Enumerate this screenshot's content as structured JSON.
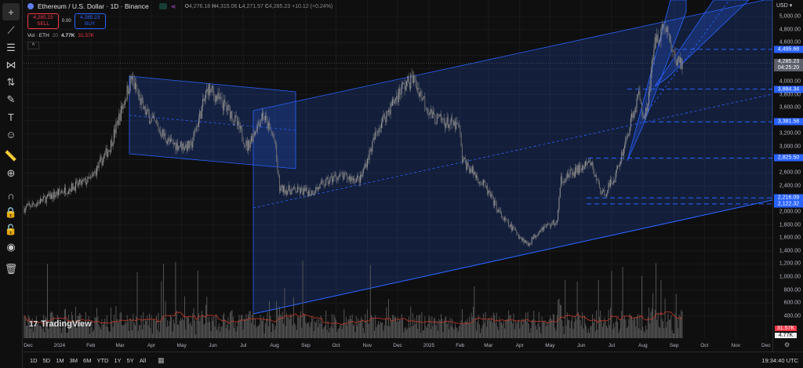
{
  "header": {
    "symbol_icon": "ethereum-icon",
    "title": "Ethereum / U.S. Dollar · 1D · Binance",
    "ohlc": {
      "o_label": "O",
      "o": "4,276.18",
      "h_label": "H",
      "h": "4,315.06",
      "l_label": "L",
      "l": "4,271.57",
      "c_label": "C",
      "c": "4,285.23",
      "change": "+10.12 (+0.24%)"
    },
    "sell_price": "4,285.23",
    "sell_label": "SELL",
    "spread": "0.00",
    "buy_price": "4,285.23",
    "buy_label": "BUY",
    "vol_label": "Vol · ETH",
    "vol_len": "20",
    "vol_value": "4.77K",
    "vol_ma": "31.57K",
    "collapse": "^"
  },
  "toolbar": [
    "crosshair-icon",
    "trendline-icon",
    "fib-icon",
    "pattern-icon",
    "projection-icon",
    "brush-icon",
    "text-icon",
    "emoji-icon",
    "ruler-icon",
    "zoom-in-icon",
    "magnet-icon",
    "lock-drawing-icon",
    "unlock-icon",
    "eye-icon",
    "trash-icon"
  ],
  "axis": {
    "currency": "USD ▾",
    "current_price": "4,285.23",
    "countdown": "04:25:20",
    "vol_ma_badge": "31.57K",
    "vol_badge": "4.77K",
    "time": "19:34:40 UTC"
  },
  "colors": {
    "bg": "#0f0f0f",
    "candle": "#8a8a8a",
    "drawing": "#2962ff",
    "sell": "#f23645",
    "ma": "#c0392b"
  },
  "bottom": {
    "ranges": [
      "1D",
      "5D",
      "1M",
      "3M",
      "6M",
      "YTD",
      "1Y",
      "5Y",
      "All"
    ],
    "brand": "TradingView"
  },
  "chart_data": {
    "type": "candlestick",
    "title": "Ethereum / U.S. Dollar · 1D · Binance",
    "ylim": [
      300,
      5100
    ],
    "y_ticks": [
      400,
      600,
      800,
      1000,
      1200,
      1400,
      1600,
      1800,
      2000,
      2200,
      2400,
      2600,
      2800,
      3000,
      3200,
      3400,
      3600,
      3800,
      4000,
      4200,
      4400,
      4600,
      4800,
      5000
    ],
    "y_tick_labels": [
      "400.00",
      "600.00",
      "800.00",
      "1,000.00",
      "1,200.00",
      "1,400.00",
      "1,600.00",
      "1,800.00",
      "2,000.00",
      "2,200.00",
      "2,400.00",
      "2,600.00",
      "2,800.00",
      "3,000.00",
      "3,200.00",
      "3,400.00",
      "3,600.00",
      "3,800.00",
      "4,000.00",
      "4,200.00",
      "4,400.00",
      "4,600.00",
      "4,800.00",
      "5,000.00"
    ],
    "x_ticks": [
      "Dec",
      "2024",
      "Feb",
      "Mar",
      "Apr",
      "May",
      "Jun",
      "Jul",
      "Aug",
      "Sep",
      "Oct",
      "Nov",
      "Dec",
      "2025",
      "Feb",
      "Mar",
      "Apr",
      "May",
      "Jun",
      "Jul",
      "Aug",
      "Sep",
      "Oct",
      "Nov",
      "Dec"
    ],
    "x_tick_dates": [
      "2023-12-01",
      "2024-01-01",
      "2024-02-01",
      "2024-03-01",
      "2024-04-01",
      "2024-05-01",
      "2024-06-01",
      "2024-07-01",
      "2024-08-01",
      "2024-09-01",
      "2024-10-01",
      "2024-11-01",
      "2024-12-01",
      "2025-01-01",
      "2025-02-01",
      "2025-03-01",
      "2025-04-01",
      "2025-05-01",
      "2025-06-01",
      "2025-07-01",
      "2025-08-01",
      "2025-09-01",
      "2025-10-01",
      "2025-11-01",
      "2025-12-01"
    ],
    "price_path": [
      [
        "2023-11-27",
        2050
      ],
      [
        "2024-01-01",
        2300
      ],
      [
        "2024-02-01",
        2500
      ],
      [
        "2024-02-20",
        3000
      ],
      [
        "2024-03-12",
        4050
      ],
      [
        "2024-03-25",
        3550
      ],
      [
        "2024-04-20",
        3050
      ],
      [
        "2024-05-10",
        3000
      ],
      [
        "2024-05-27",
        3900
      ],
      [
        "2024-06-20",
        3500
      ],
      [
        "2024-07-05",
        3000
      ],
      [
        "2024-07-20",
        3500
      ],
      [
        "2024-08-01",
        3100
      ],
      [
        "2024-08-06",
        2350
      ],
      [
        "2024-09-06",
        2300
      ],
      [
        "2024-10-01",
        2550
      ],
      [
        "2024-10-25",
        2500
      ],
      [
        "2024-11-12",
        3300
      ],
      [
        "2024-12-05",
        3900
      ],
      [
        "2024-12-16",
        4050
      ],
      [
        "2025-01-05",
        3450
      ],
      [
        "2025-01-31",
        3300
      ],
      [
        "2025-02-03",
        2800
      ],
      [
        "2025-02-25",
        2400
      ],
      [
        "2025-03-15",
        1900
      ],
      [
        "2025-04-09",
        1500
      ],
      [
        "2025-04-22",
        1750
      ],
      [
        "2025-05-08",
        1850
      ],
      [
        "2025-05-12",
        2500
      ],
      [
        "2025-06-10",
        2750
      ],
      [
        "2025-06-22",
        2250
      ],
      [
        "2025-07-05",
        2550
      ],
      [
        "2025-07-15",
        3100
      ],
      [
        "2025-07-28",
        3800
      ],
      [
        "2025-08-03",
        3400
      ],
      [
        "2025-08-14",
        4700
      ],
      [
        "2025-08-24",
        4850
      ],
      [
        "2025-09-01",
        4350
      ],
      [
        "2025-09-09",
        4285.23
      ]
    ],
    "levels": [
      "4,495.68",
      "3,884.34",
      "3,381.58",
      "2,825.50",
      "2,216.09",
      "2,122.32"
    ],
    "level_values": [
      4495.68,
      3884.34,
      3381.58,
      2825.5,
      2216.09,
      2122.32
    ],
    "current": 4285.23,
    "volume": {
      "label": "Vol · ETH 20",
      "last": "4.77K",
      "ma": "31.57K"
    }
  }
}
